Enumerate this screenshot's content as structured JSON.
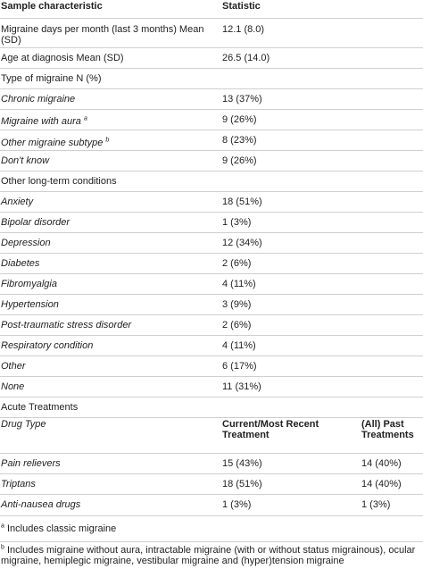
{
  "header": {
    "col1": "Sample characteristic",
    "col2": "Statistic"
  },
  "rows": [
    {
      "label": "Migraine days per month (last 3 months) Mean (SD)",
      "value": "12.1 (8.0)"
    },
    {
      "label": "Age at diagnosis Mean (SD)",
      "value": "26.5 (14.0)"
    },
    {
      "label": "Type of migraine N (%)",
      "value": ""
    },
    {
      "label": "Chronic migraine",
      "value": "13 (37%)"
    },
    {
      "label": "Migraine with aura",
      "sup": "a",
      "value": "9 (26%)"
    },
    {
      "label": "Other migraine subtype",
      "sup": "b",
      "value": "8 (23%)"
    },
    {
      "label": "Don't know",
      "value": "9 (26%)"
    },
    {
      "label": "Other long-term conditions",
      "value": ""
    },
    {
      "label": "Anxiety",
      "value": "18 (51%)"
    },
    {
      "label": "Bipolar disorder",
      "value": "1 (3%)"
    },
    {
      "label": "Depression",
      "value": "12 (34%)"
    },
    {
      "label": "Diabetes",
      "value": "2 (6%)"
    },
    {
      "label": "Fibromyalgia",
      "value": "4 (11%)"
    },
    {
      "label": "Hypertension",
      "value": "3 (9%)"
    },
    {
      "label": "Post-traumatic stress disorder",
      "value": "2 (6%)"
    },
    {
      "label": "Respiratory condition",
      "value": "4 (11%)"
    },
    {
      "label": "Other",
      "value": "6 (17%)"
    },
    {
      "label": "None",
      "value": "11 (31%)"
    },
    {
      "label": "Acute Treatments",
      "value": ""
    }
  ],
  "drug_header": {
    "col1": "Drug Type",
    "col2": "Current/Most Recent Treatment",
    "col3": "(All) Past Treatments"
  },
  "drug_rows": [
    {
      "label": "Pain relievers",
      "current": "15 (43%)",
      "past": "14 (40%)"
    },
    {
      "label": "Triptans",
      "current": "18 (51%)",
      "past": "14 (40%)"
    },
    {
      "label": "Anti-nausea drugs",
      "current": "1 (3%)",
      "past": "1 (3%)"
    }
  ],
  "footnotes": [
    {
      "mark": "a",
      "text": "Includes classic migraine"
    },
    {
      "mark": "b",
      "text": "Includes migraine without aura, intractable migraine (with or without status migrainous), ocular migraine, hemiplegic migraine, vestibular migraine and (hyper)tension migraine"
    }
  ]
}
